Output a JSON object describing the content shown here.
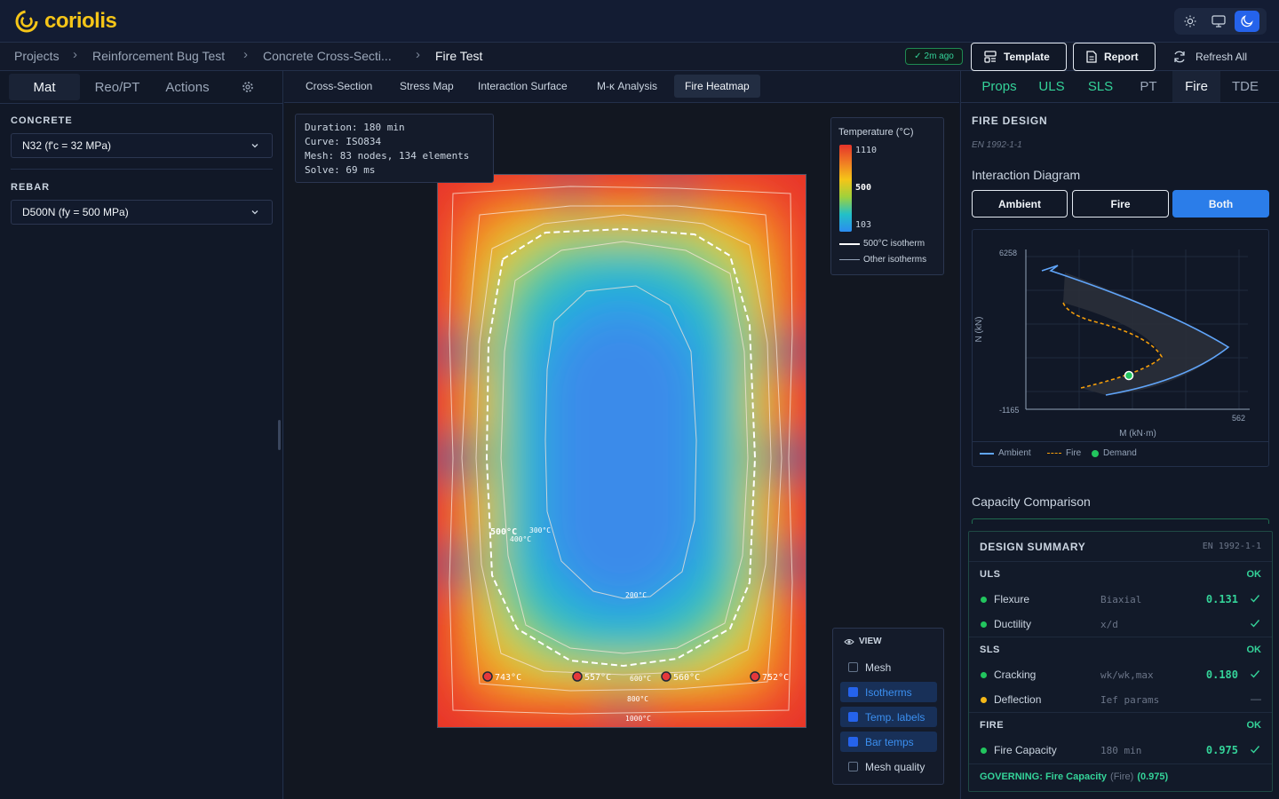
{
  "app": {
    "name": "coriolis",
    "brand_color": "#f5c518"
  },
  "breadcrumb": [
    "Projects",
    "Reinforcement Bug Test",
    "Concrete Cross-Secti...",
    "Fire Test"
  ],
  "toolbar": {
    "saved": "2m ago",
    "template": "Template",
    "report": "Report",
    "refresh": "Refresh All"
  },
  "theme": {
    "options": [
      "light-icon",
      "monitor-icon",
      "moon-icon"
    ],
    "active": "moon-icon"
  },
  "left_tabs": [
    "Mat",
    "Reo/PT",
    "Actions"
  ],
  "materials": {
    "concrete_label": "CONCRETE",
    "concrete_value": "N32 (f'c = 32 MPa)",
    "rebar_label": "REBAR",
    "rebar_value": "D500N (fy = 500 MPa)"
  },
  "center_tabs": [
    "Cross-Section",
    "Stress Map",
    "Interaction Surface",
    "M-κ Analysis",
    "Fire Heatmap"
  ],
  "active_center_tab": "Fire Heatmap",
  "heatmap_info": {
    "duration": "Duration: 180 min",
    "curve": "Curve: ISO834",
    "mesh": "Mesh: 83 nodes, 134 elements",
    "solve": "Solve: 69 ms"
  },
  "legend": {
    "title": "Temperature (°C)",
    "max": "1110",
    "mid": "500",
    "min": "103",
    "isotherm500": "500°C isotherm",
    "other": "Other isotherms"
  },
  "isotherm_labels": {
    "t500": "500°C",
    "t400": "400°C",
    "t300": "300°C",
    "t200": "200°C",
    "t600": "600°C",
    "t800": "800°C",
    "t1000": "1000°C"
  },
  "bar_temps": [
    "743°C",
    "557°C",
    "560°C",
    "752°C"
  ],
  "view_panel": {
    "title": "VIEW",
    "items": [
      {
        "label": "Mesh",
        "checked": false
      },
      {
        "label": "Isotherms",
        "checked": true
      },
      {
        "label": "Temp. labels",
        "checked": true
      },
      {
        "label": "Bar temps",
        "checked": true
      },
      {
        "label": "Mesh quality",
        "checked": false
      }
    ]
  },
  "right_tabs": [
    "Props",
    "ULS",
    "SLS",
    "PT",
    "Fire",
    "TDE"
  ],
  "active_right_tab": "Fire",
  "fire_design": {
    "title": "FIRE DESIGN",
    "code": "EN 1992-1-1",
    "interaction_title": "Interaction Diagram",
    "buttons": [
      "Ambient",
      "Fire",
      "Both"
    ],
    "active_button": "Both",
    "capacity_title": "Capacity Comparison"
  },
  "interaction": {
    "y_max": "6258",
    "y_min": "-1165",
    "x_max": "562",
    "xlabel": "M (kN·m)",
    "ylabel": "N (kN)",
    "legend": [
      "Ambient",
      "Fire",
      "Demand"
    ],
    "colors": {
      "ambient": "#60a5fa",
      "fire": "#f59e0b",
      "demand": "#22c55e"
    }
  },
  "summary": {
    "title": "DESIGN SUMMARY",
    "code": "EN 1992-1-1",
    "uls": "ULS",
    "uls_status": "OK",
    "flexure": "Flexure",
    "flexure_param": "Biaxial",
    "flexure_val": "0.131",
    "ductility": "Ductility",
    "ductility_param": "x/d",
    "sls": "SLS",
    "sls_status": "OK",
    "cracking": "Cracking",
    "cracking_param": "wk/wk,max",
    "cracking_val": "0.180",
    "deflection": "Deflection",
    "deflection_param": "Ief params",
    "deflection_val": "—",
    "fire": "FIRE",
    "fire_status": "OK",
    "fire_cap": "Fire Capacity",
    "fire_cap_param": "180 min",
    "fire_cap_val": "0.975",
    "governing_label": "GOVERNING: Fire Capacity",
    "governing_src": "(Fire)",
    "governing_val": "(0.975)"
  }
}
